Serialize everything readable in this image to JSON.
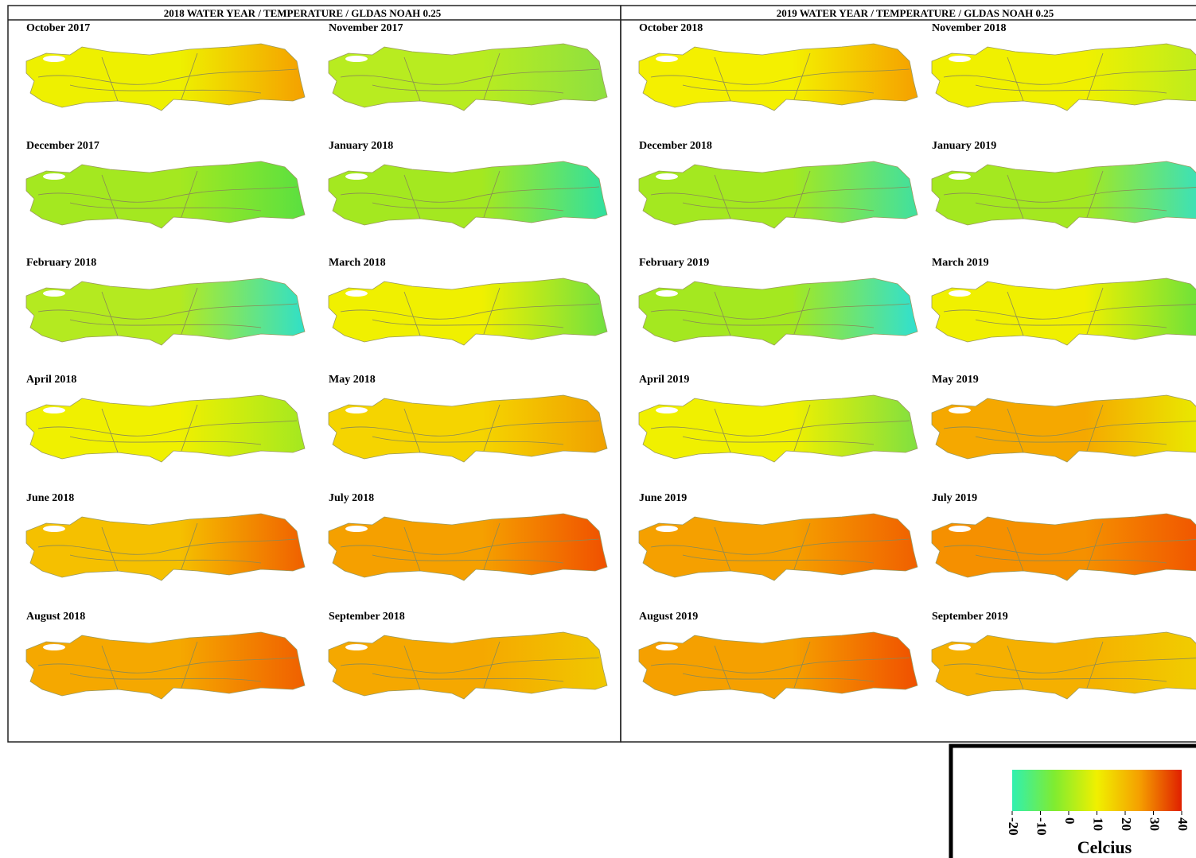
{
  "panels": [
    {
      "title": "2018 WATER YEAR / TEMPERATURE / GLDAS NOAH 0.25",
      "maps": [
        {
          "label": "October 2017",
          "color": "#eef000",
          "accent": "#f5a000"
        },
        {
          "label": "November 2017",
          "color": "#b8ec20",
          "accent": "#8ee040"
        },
        {
          "label": "December 2017",
          "color": "#a4e820",
          "accent": "#5ae040"
        },
        {
          "label": "January 2018",
          "color": "#a4e820",
          "accent": "#30e0a0"
        },
        {
          "label": "February 2018",
          "color": "#b4ea20",
          "accent": "#30e0c8"
        },
        {
          "label": "March 2018",
          "color": "#f0f000",
          "accent": "#70e040"
        },
        {
          "label": "April 2018",
          "color": "#f0f000",
          "accent": "#a4e820"
        },
        {
          "label": "May 2018",
          "color": "#f5d400",
          "accent": "#f0a000"
        },
        {
          "label": "June 2018",
          "color": "#f5c000",
          "accent": "#f06000"
        },
        {
          "label": "July 2018",
          "color": "#f5a000",
          "accent": "#f05000"
        },
        {
          "label": "August 2018",
          "color": "#f5a800",
          "accent": "#f06000"
        },
        {
          "label": "September 2018",
          "color": "#f5a800",
          "accent": "#f0c800"
        }
      ]
    },
    {
      "title": "2019 WATER YEAR / TEMPERATURE / GLDAS NOAH 0.25",
      "maps": [
        {
          "label": "October 2018",
          "color": "#f4f000",
          "accent": "#f5a000"
        },
        {
          "label": "November 2018",
          "color": "#f0f000",
          "accent": "#b8ec20"
        },
        {
          "label": "December 2018",
          "color": "#a4e820",
          "accent": "#40e0a0"
        },
        {
          "label": "January 2019",
          "color": "#a4e820",
          "accent": "#30e0c8"
        },
        {
          "label": "February 2019",
          "color": "#a4e820",
          "accent": "#30e0d0"
        },
        {
          "label": "March 2019",
          "color": "#f0f000",
          "accent": "#60e040"
        },
        {
          "label": "April 2019",
          "color": "#f0f000",
          "accent": "#80e040"
        },
        {
          "label": "May 2019",
          "color": "#f5a800",
          "accent": "#e8f000"
        },
        {
          "label": "June 2019",
          "color": "#f5a000",
          "accent": "#f06000"
        },
        {
          "label": "July 2019",
          "color": "#f59000",
          "accent": "#f05000"
        },
        {
          "label": "August 2019",
          "color": "#f5a000",
          "accent": "#f05000"
        },
        {
          "label": "September 2019",
          "color": "#f5b000",
          "accent": "#f0d000"
        }
      ]
    }
  ],
  "legend": {
    "label": "Celcius",
    "clim": [
      -20,
      40
    ],
    "ticks": [
      -20,
      -10,
      0,
      10,
      20,
      30,
      40
    ],
    "colors": [
      "#30f0b0",
      "#80ec30",
      "#f0f000",
      "#f5a000",
      "#e02000"
    ]
  }
}
